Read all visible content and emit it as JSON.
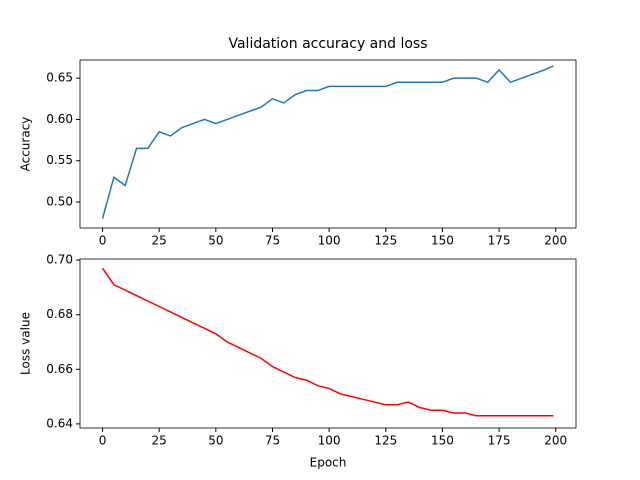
{
  "chart_data": [
    {
      "type": "line",
      "title": "Validation accuracy and loss",
      "ylabel": "Accuracy",
      "x": [
        0,
        5,
        10,
        15,
        20,
        25,
        30,
        35,
        40,
        45,
        50,
        55,
        60,
        65,
        70,
        75,
        80,
        85,
        90,
        95,
        100,
        105,
        110,
        115,
        120,
        125,
        130,
        135,
        140,
        145,
        150,
        155,
        160,
        165,
        170,
        175,
        180,
        185,
        190,
        195,
        199
      ],
      "series": [
        {
          "color": "#1f77b4",
          "values": [
            0.48,
            0.53,
            0.52,
            0.565,
            0.565,
            0.585,
            0.58,
            0.59,
            0.595,
            0.6,
            0.595,
            0.6,
            0.605,
            0.61,
            0.615,
            0.625,
            0.62,
            0.63,
            0.635,
            0.635,
            0.64,
            0.64,
            0.64,
            0.64,
            0.64,
            0.64,
            0.645,
            0.645,
            0.645,
            0.645,
            0.645,
            0.65,
            0.65,
            0.65,
            0.645,
            0.66,
            0.645,
            0.65,
            0.655,
            0.66,
            0.665
          ]
        }
      ],
      "xlim": [
        -9.95,
        208.95
      ],
      "xticks": [
        0,
        25,
        50,
        75,
        100,
        125,
        150,
        175,
        200
      ],
      "ylim": [
        0.4685,
        0.672
      ],
      "yticks": [
        {
          "value": 0.5,
          "label": "0.50"
        },
        {
          "value": 0.55,
          "label": "0.55"
        },
        {
          "value": 0.6,
          "label": "0.60"
        },
        {
          "value": 0.65,
          "label": "0.65"
        }
      ]
    },
    {
      "type": "line",
      "xlabel": "Epoch",
      "ylabel": "Loss value",
      "x": [
        0,
        5,
        10,
        15,
        20,
        25,
        30,
        35,
        40,
        45,
        50,
        55,
        60,
        65,
        70,
        75,
        80,
        85,
        90,
        95,
        100,
        105,
        110,
        115,
        120,
        125,
        130,
        135,
        140,
        145,
        150,
        155,
        160,
        165,
        170,
        175,
        180,
        185,
        190,
        195,
        199
      ],
      "series": [
        {
          "color": "#ff0000",
          "values": [
            0.697,
            0.691,
            0.689,
            0.687,
            0.685,
            0.683,
            0.681,
            0.679,
            0.677,
            0.675,
            0.673,
            0.67,
            0.668,
            0.666,
            0.664,
            0.661,
            0.659,
            0.657,
            0.656,
            0.654,
            0.653,
            0.651,
            0.65,
            0.649,
            0.648,
            0.647,
            0.647,
            0.648,
            0.646,
            0.645,
            0.645,
            0.644,
            0.644,
            0.643,
            0.643,
            0.643,
            0.643,
            0.643,
            0.643,
            0.643,
            0.643
          ]
        }
      ],
      "xlim": [
        -9.95,
        208.95
      ],
      "xticks": [
        0,
        25,
        50,
        75,
        100,
        125,
        150,
        175,
        200
      ],
      "ylim": [
        0.6385,
        0.7004
      ],
      "yticks": [
        {
          "value": 0.64,
          "label": "0.64"
        },
        {
          "value": 0.66,
          "label": "0.66"
        },
        {
          "value": 0.68,
          "label": "0.68"
        },
        {
          "value": 0.7,
          "label": "0.70"
        }
      ]
    }
  ]
}
